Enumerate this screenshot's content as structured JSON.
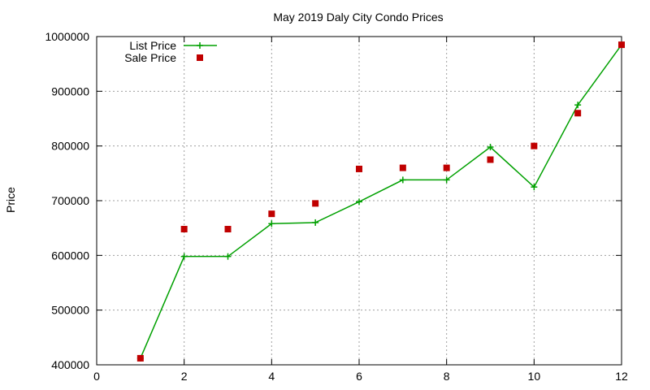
{
  "chart_data": {
    "type": "line",
    "title": "May 2019 Daly City Condo Prices",
    "xlabel": "",
    "ylabel": "Price",
    "xlim": [
      0,
      12
    ],
    "ylim": [
      400000,
      1000000
    ],
    "x_ticks": [
      0,
      2,
      4,
      6,
      8,
      10,
      12
    ],
    "y_ticks": [
      400000,
      500000,
      600000,
      700000,
      800000,
      900000,
      1000000
    ],
    "x_tick_labels": [
      "0",
      "2",
      "4",
      "6",
      "8",
      "10",
      "12"
    ],
    "y_tick_labels": [
      "400000",
      "500000",
      "600000",
      "700000",
      "800000",
      "900000",
      "1000000"
    ],
    "grid": true,
    "legend_position": "top-left",
    "series": [
      {
        "name": "List Price",
        "style": "line-with-plus-markers",
        "color": "#00a000",
        "x": [
          1,
          2,
          3,
          4,
          5,
          6,
          7,
          8,
          9,
          10,
          11,
          12
        ],
        "y": [
          412000,
          598000,
          598000,
          658000,
          660000,
          698000,
          738000,
          738000,
          798000,
          725000,
          875000,
          985000
        ]
      },
      {
        "name": "Sale Price",
        "style": "square-markers",
        "color": "#c00000",
        "x": [
          1,
          2,
          3,
          4,
          5,
          6,
          7,
          8,
          9,
          10,
          11,
          12
        ],
        "y": [
          412000,
          648000,
          648000,
          676000,
          695000,
          758000,
          760000,
          760000,
          775000,
          800000,
          860000,
          985000
        ]
      }
    ]
  }
}
